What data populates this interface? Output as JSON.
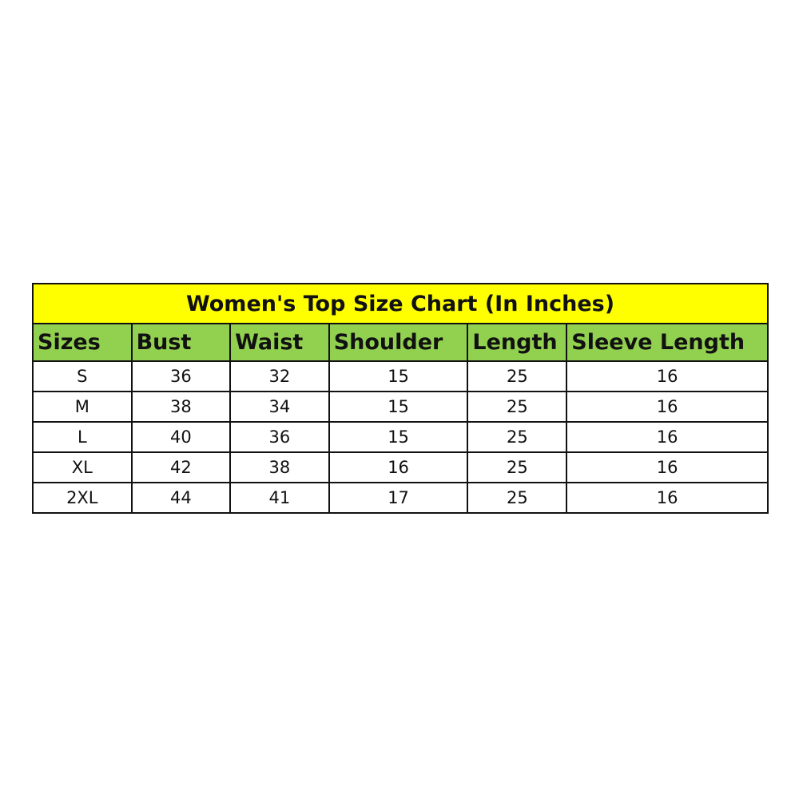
{
  "title": "Women's Top Size Chart (In Inches)",
  "colors": {
    "title_bg": "#ffff00",
    "header_bg": "#92d050"
  },
  "columns": [
    "Sizes",
    "Bust",
    "Waist",
    "Shoulder",
    "Length",
    "Sleeve Length"
  ],
  "rows": [
    [
      "S",
      "36",
      "32",
      "15",
      "25",
      "16"
    ],
    [
      "M",
      "38",
      "34",
      "15",
      "25",
      "16"
    ],
    [
      "L",
      "40",
      "36",
      "15",
      "25",
      "16"
    ],
    [
      "XL",
      "42",
      "38",
      "16",
      "25",
      "16"
    ],
    [
      "2XL",
      "44",
      "41",
      "17",
      "25",
      "16"
    ]
  ]
}
